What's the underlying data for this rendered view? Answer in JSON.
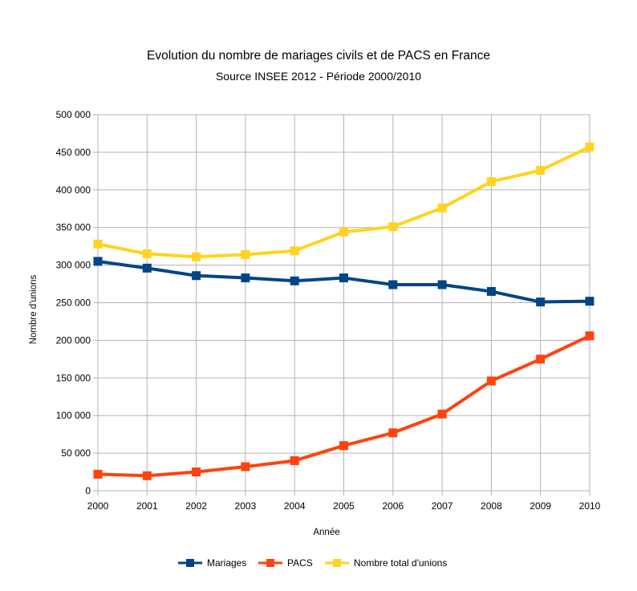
{
  "chart_data": {
    "type": "line",
    "title": "Evolution du nombre de mariages civils et de PACS en France",
    "subtitle": "Source INSEE 2012 - Période 2000/2010",
    "xlabel": "Année",
    "ylabel": "Nombre d'unions",
    "categories": [
      "2000",
      "2001",
      "2002",
      "2003",
      "2004",
      "2005",
      "2006",
      "2007",
      "2008",
      "2009",
      "2010"
    ],
    "yticks": [
      "0",
      "50 000",
      "100 000",
      "150 000",
      "200 000",
      "250 000",
      "300 000",
      "350 000",
      "400 000",
      "450 000",
      "500 000"
    ],
    "ylim": [
      0,
      500000
    ],
    "grid": true,
    "legend_position": "bottom",
    "series": [
      {
        "name": "Mariages",
        "color": "#004586",
        "values": [
          305000,
          296000,
          286000,
          283000,
          279000,
          283000,
          274000,
          274000,
          265000,
          251000,
          252000
        ]
      },
      {
        "name": "PACS",
        "color": "#ff420e",
        "values": [
          22000,
          20000,
          25000,
          32000,
          40000,
          60000,
          77000,
          102000,
          146000,
          175000,
          206000
        ]
      },
      {
        "name": "Nombre total d'unions",
        "color": "#ffd320",
        "values": [
          328000,
          315000,
          311000,
          314000,
          319000,
          344000,
          351000,
          376000,
          411000,
          426000,
          457000
        ]
      }
    ]
  }
}
